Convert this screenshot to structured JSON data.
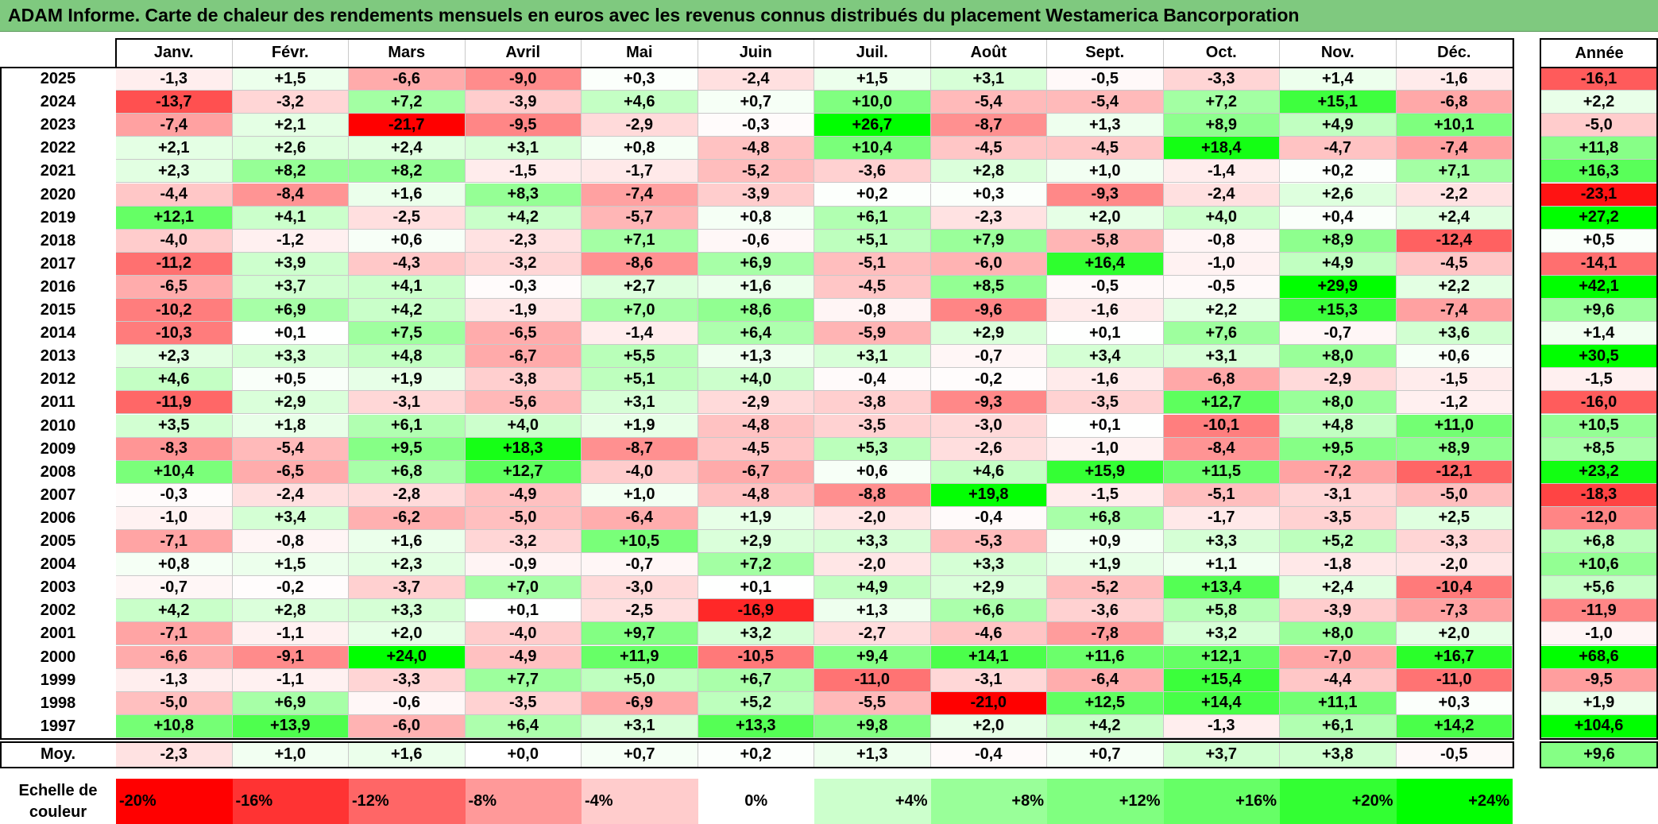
{
  "title": "ADAM Informe. Carte de chaleur des rendements mensuels en euros avec les revenus connus distribués du placement Westamerica Bancorporation",
  "chart_data": {
    "type": "heatmap",
    "title": "ADAM Informe. Carte de chaleur des rendements mensuels en euros avec les revenus connus distribués du placement Westamerica Bancorporation",
    "columns": [
      "Janv.",
      "Févr.",
      "Mars",
      "Avril",
      "Mai",
      "Juin",
      "Juil.",
      "Août",
      "Sept.",
      "Oct.",
      "Nov.",
      "Déc."
    ],
    "year_column_label": "Année",
    "rows": [
      {
        "year": "2025",
        "values": [
          "-1,3",
          "+1,5",
          "-6,6",
          "-9,0",
          "+0,3",
          "-2,4",
          "+1,5",
          "+3,1",
          "-0,5",
          "-3,3",
          "+1,4",
          "-1,6"
        ],
        "annual": "-16,1"
      },
      {
        "year": "2024",
        "values": [
          "-13,7",
          "-3,2",
          "+7,2",
          "-3,9",
          "+4,6",
          "+0,7",
          "+10,0",
          "-5,4",
          "-5,4",
          "+7,2",
          "+15,1",
          "-6,8"
        ],
        "annual": "+2,2"
      },
      {
        "year": "2023",
        "values": [
          "-7,4",
          "+2,1",
          "-21,7",
          "-9,5",
          "-2,9",
          "-0,3",
          "+26,7",
          "-8,7",
          "+1,3",
          "+8,9",
          "+4,9",
          "+10,1"
        ],
        "annual": "-5,0"
      },
      {
        "year": "2022",
        "values": [
          "+2,1",
          "+2,6",
          "+2,4",
          "+3,1",
          "+0,8",
          "-4,8",
          "+10,4",
          "-4,5",
          "-4,5",
          "+18,4",
          "-4,7",
          "-7,4"
        ],
        "annual": "+11,8"
      },
      {
        "year": "2021",
        "values": [
          "+2,3",
          "+8,2",
          "+8,2",
          "-1,5",
          "-1,7",
          "-5,2",
          "-3,6",
          "+2,8",
          "+1,0",
          "-1,4",
          "+0,2",
          "+7,1"
        ],
        "annual": "+16,3"
      },
      {
        "year": "2020",
        "values": [
          "-4,4",
          "-8,4",
          "+1,6",
          "+8,3",
          "-7,4",
          "-3,9",
          "+0,2",
          "+0,3",
          "-9,3",
          "-2,4",
          "+2,6",
          "-2,2"
        ],
        "annual": "-23,1"
      },
      {
        "year": "2019",
        "values": [
          "+12,1",
          "+4,1",
          "-2,5",
          "+4,2",
          "-5,7",
          "+0,8",
          "+6,1",
          "-2,3",
          "+2,0",
          "+4,0",
          "+0,4",
          "+2,4"
        ],
        "annual": "+27,2"
      },
      {
        "year": "2018",
        "values": [
          "-4,0",
          "-1,2",
          "+0,6",
          "-2,3",
          "+7,1",
          "-0,6",
          "+5,1",
          "+7,9",
          "-5,8",
          "-0,8",
          "+8,9",
          "-12,4"
        ],
        "annual": "+0,5"
      },
      {
        "year": "2017",
        "values": [
          "-11,2",
          "+3,9",
          "-4,3",
          "-3,2",
          "-8,6",
          "+6,9",
          "-5,1",
          "-6,0",
          "+16,4",
          "-1,0",
          "+4,9",
          "-4,5"
        ],
        "annual": "-14,1"
      },
      {
        "year": "2016",
        "values": [
          "-6,5",
          "+3,7",
          "+4,1",
          "-0,3",
          "+2,7",
          "+1,6",
          "-4,5",
          "+8,5",
          "-0,5",
          "-0,5",
          "+29,9",
          "+2,2"
        ],
        "annual": "+42,1"
      },
      {
        "year": "2015",
        "values": [
          "-10,2",
          "+6,9",
          "+4,2",
          "-1,9",
          "+7,0",
          "+8,6",
          "-0,8",
          "-9,6",
          "-1,6",
          "+2,2",
          "+15,3",
          "-7,4"
        ],
        "annual": "+9,6"
      },
      {
        "year": "2014",
        "values": [
          "-10,3",
          "+0,1",
          "+7,5",
          "-6,5",
          "-1,4",
          "+6,4",
          "-5,9",
          "+2,9",
          "+0,1",
          "+7,6",
          "-0,7",
          "+3,6"
        ],
        "annual": "+1,4"
      },
      {
        "year": "2013",
        "values": [
          "+2,3",
          "+3,3",
          "+4,8",
          "-6,7",
          "+5,5",
          "+1,3",
          "+3,1",
          "-0,7",
          "+3,4",
          "+3,1",
          "+8,0",
          "+0,6"
        ],
        "annual": "+30,5"
      },
      {
        "year": "2012",
        "values": [
          "+4,6",
          "+0,5",
          "+1,9",
          "-3,8",
          "+5,1",
          "+4,0",
          "-0,4",
          "-0,2",
          "-1,6",
          "-6,8",
          "-2,9",
          "-1,5"
        ],
        "annual": "-1,5"
      },
      {
        "year": "2011",
        "values": [
          "-11,9",
          "+2,9",
          "-3,1",
          "-5,6",
          "+3,1",
          "-2,9",
          "-3,8",
          "-9,3",
          "-3,5",
          "+12,7",
          "+8,0",
          "-1,2"
        ],
        "annual": "-16,0"
      },
      {
        "year": "2010",
        "values": [
          "+3,5",
          "+1,8",
          "+6,1",
          "+4,0",
          "+1,9",
          "-4,8",
          "-3,5",
          "-3,0",
          "+0,1",
          "-10,1",
          "+4,8",
          "+11,0"
        ],
        "annual": "+10,5"
      },
      {
        "year": "2009",
        "values": [
          "-8,3",
          "-5,4",
          "+9,5",
          "+18,3",
          "-8,7",
          "-4,5",
          "+5,3",
          "-2,6",
          "-1,0",
          "-8,4",
          "+9,5",
          "+8,9"
        ],
        "annual": "+8,5"
      },
      {
        "year": "2008",
        "values": [
          "+10,4",
          "-6,5",
          "+6,8",
          "+12,7",
          "-4,0",
          "-6,7",
          "+0,6",
          "+4,6",
          "+15,9",
          "+11,5",
          "-7,2",
          "-12,1"
        ],
        "annual": "+23,2"
      },
      {
        "year": "2007",
        "values": [
          "-0,3",
          "-2,4",
          "-2,8",
          "-4,9",
          "+1,0",
          "-4,8",
          "-8,8",
          "+19,8",
          "-1,5",
          "-5,1",
          "-3,1",
          "-5,0"
        ],
        "annual": "-18,3"
      },
      {
        "year": "2006",
        "values": [
          "-1,0",
          "+3,4",
          "-6,2",
          "-5,0",
          "-6,4",
          "+1,9",
          "-2,0",
          "-0,4",
          "+6,8",
          "-1,7",
          "-3,5",
          "+2,5"
        ],
        "annual": "-12,0"
      },
      {
        "year": "2005",
        "values": [
          "-7,1",
          "-0,8",
          "+1,6",
          "-3,2",
          "+10,5",
          "+2,9",
          "+3,3",
          "-5,3",
          "+0,9",
          "+3,3",
          "+5,2",
          "-3,3"
        ],
        "annual": "+6,8"
      },
      {
        "year": "2004",
        "values": [
          "+0,8",
          "+1,5",
          "+2,3",
          "-0,9",
          "-0,7",
          "+7,2",
          "-2,0",
          "+3,3",
          "+1,9",
          "+1,1",
          "-1,8",
          "-2,0"
        ],
        "annual": "+10,6"
      },
      {
        "year": "2003",
        "values": [
          "-0,7",
          "-0,2",
          "-3,7",
          "+7,0",
          "-3,0",
          "+0,1",
          "+4,9",
          "+2,9",
          "-5,2",
          "+13,4",
          "+2,4",
          "-10,4"
        ],
        "annual": "+5,6"
      },
      {
        "year": "2002",
        "values": [
          "+4,2",
          "+2,8",
          "+3,3",
          "+0,1",
          "-2,5",
          "-16,9",
          "+1,3",
          "+6,6",
          "-3,6",
          "+5,8",
          "-3,9",
          "-7,3"
        ],
        "annual": "-11,9"
      },
      {
        "year": "2001",
        "values": [
          "-7,1",
          "-1,1",
          "+2,0",
          "-4,0",
          "+9,7",
          "+3,2",
          "-2,7",
          "-4,6",
          "-7,8",
          "+3,2",
          "+8,0",
          "+2,0"
        ],
        "annual": "-1,0"
      },
      {
        "year": "2000",
        "values": [
          "-6,6",
          "-9,1",
          "+24,0",
          "-4,9",
          "+11,9",
          "-10,5",
          "+9,4",
          "+14,1",
          "+11,6",
          "+12,1",
          "-7,0",
          "+16,7"
        ],
        "annual": "+68,6"
      },
      {
        "year": "1999",
        "values": [
          "-1,3",
          "-1,1",
          "-3,3",
          "+7,7",
          "+5,0",
          "+6,7",
          "-11,0",
          "-3,1",
          "-6,4",
          "+15,4",
          "-4,4",
          "-11,0"
        ],
        "annual": "-9,5"
      },
      {
        "year": "1998",
        "values": [
          "-5,0",
          "+6,9",
          "-0,6",
          "-3,5",
          "-6,9",
          "+5,2",
          "-5,5",
          "-21,0",
          "+12,5",
          "+14,4",
          "+11,1",
          "+0,3"
        ],
        "annual": "+1,9"
      },
      {
        "year": "1997",
        "values": [
          "+10,8",
          "+13,9",
          "-6,0",
          "+6,4",
          "+3,1",
          "+13,3",
          "+9,8",
          "+2,0",
          "+4,2",
          "-1,3",
          "+6,1",
          "+14,2"
        ],
        "annual": "+104,6"
      }
    ],
    "average_row": {
      "label": "Moy.",
      "values": [
        "-2,3",
        "+1,0",
        "+1,6",
        "+0,0",
        "+0,7",
        "+0,2",
        "+1,3",
        "-0,4",
        "+0,7",
        "+3,7",
        "+3,8",
        "-0,5"
      ],
      "annual": "+9,6"
    },
    "color_scale": {
      "label": "Echelle de couleur",
      "steps": [
        {
          "label": "-20%",
          "value": -20,
          "color": "#ff0000"
        },
        {
          "label": "-16%",
          "value": -16,
          "color": "#ff3333"
        },
        {
          "label": "-12%",
          "value": -12,
          "color": "#ff6666"
        },
        {
          "label": "-8%",
          "value": -8,
          "color": "#ff9999"
        },
        {
          "label": "-4%",
          "value": -4,
          "color": "#ffcccc"
        },
        {
          "label": "0%",
          "value": 0,
          "color": "#ffffff"
        },
        {
          "label": "+4%",
          "value": 4,
          "color": "#ccffcc"
        },
        {
          "label": "+8%",
          "value": 8,
          "color": "#99ff99"
        },
        {
          "label": "+12%",
          "value": 12,
          "color": "#80ff80"
        },
        {
          "label": "+16%",
          "value": 16,
          "color": "#66ff66"
        },
        {
          "label": "+20%",
          "value": 20,
          "color": "#33ff33"
        },
        {
          "label": "+24%",
          "value": 24,
          "color": "#00ff00"
        }
      ],
      "annual_saturation": 25
    }
  }
}
